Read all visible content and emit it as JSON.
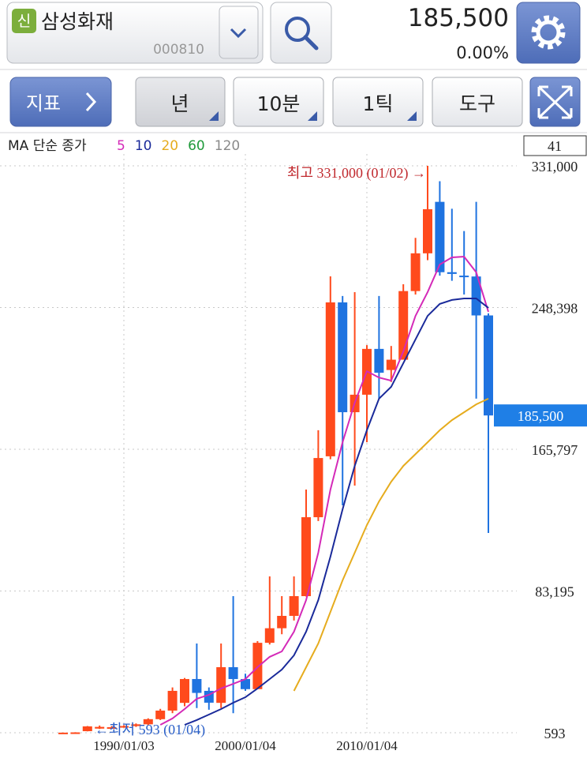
{
  "header": {
    "badge": "신",
    "name": "삼성화재",
    "code": "000810",
    "price": "185,500",
    "change": "0.00%"
  },
  "toolbar": {
    "indicator": "지표",
    "period": "년",
    "interval": "10분",
    "tick": "1틱",
    "tools": "도구"
  },
  "count_box": "41",
  "chart_data": {
    "type": "candlestick",
    "legend_title": "MA 단순 종가",
    "categories": [
      null,
      null,
      null,
      null,
      null,
      "1990/01/03",
      null,
      null,
      null,
      null,
      null,
      null,
      null,
      null,
      null,
      "2000/01/04",
      null,
      null,
      null,
      null,
      null,
      null,
      null,
      null,
      null,
      "2010/01/04",
      null,
      null,
      null,
      null,
      null,
      null,
      null,
      null,
      null,
      null
    ],
    "open": [
      600,
      700,
      1500,
      3000,
      3500,
      3800,
      4500,
      5500,
      8500,
      13500,
      18000,
      31900,
      25000,
      18000,
      38800,
      31900,
      26000,
      53000,
      61500,
      68700,
      80200,
      126200,
      161700,
      251400,
      187400,
      197600,
      224300,
      212000,
      218000,
      258000,
      280000,
      310000,
      269000,
      267000,
      266500,
      243800
    ],
    "high": [
      700,
      900,
      4500,
      4800,
      4500,
      5000,
      6000,
      9000,
      14500,
      27000,
      32500,
      52600,
      27000,
      52600,
      80200,
      35000,
      54000,
      91700,
      80200,
      91700,
      142300,
      176900,
      266600,
      255100,
      257400,
      226500,
      255100,
      226000,
      262000,
      289000,
      331000,
      322000,
      306000,
      293000,
      310000,
      245000
    ],
    "low": [
      593,
      650,
      1400,
      2800,
      3000,
      3500,
      4000,
      5000,
      8000,
      12000,
      16000,
      15000,
      14000,
      15000,
      12000,
      25000,
      26000,
      52000,
      58000,
      66000,
      80000,
      124000,
      160000,
      133100,
      144600,
      169900,
      195300,
      205000,
      218000,
      256000,
      276000,
      267000,
      264000,
      256000,
      195300,
      117000
    ],
    "close": [
      650,
      800,
      4300,
      4000,
      3800,
      4500,
      5500,
      8500,
      13500,
      25000,
      31900,
      23800,
      18100,
      38800,
      31900,
      26000,
      53000,
      61500,
      68700,
      80200,
      126200,
      160700,
      251400,
      187400,
      197600,
      224300,
      210400,
      218000,
      258000,
      280000,
      305700,
      269000,
      268000,
      266500,
      243800,
      185500
    ],
    "up_color": "#ff4a1c",
    "down_color": "#1f73e0",
    "series": [
      {
        "name": "5",
        "color": "#d42ab8",
        "values": [
          null,
          null,
          null,
          null,
          null,
          null,
          null,
          null,
          5200,
          8900,
          14400,
          20400,
          22700,
          26400,
          29100,
          31900,
          38800,
          44800,
          48000,
          59500,
          77900,
          105500,
          142300,
          169900,
          192900,
          211300,
          207600,
          205800,
          222800,
          243500,
          257400,
          273500,
          277600,
          278100,
          268900,
          245900
        ]
      },
      {
        "name": "10",
        "color": "#1a2a9a",
        "values": [
          null,
          null,
          null,
          null,
          null,
          null,
          null,
          null,
          null,
          null,
          5200,
          8000,
          11200,
          14400,
          18100,
          21300,
          26400,
          31900,
          37400,
          45700,
          59500,
          77900,
          103200,
          130800,
          156100,
          176900,
          195300,
          202200,
          216000,
          229800,
          243500,
          250500,
          252800,
          253700,
          253700,
          248200
        ]
      },
      {
        "name": "20",
        "color": "#e6ac1e",
        "values": [
          null,
          null,
          null,
          null,
          null,
          null,
          null,
          null,
          null,
          null,
          null,
          null,
          null,
          null,
          null,
          null,
          null,
          null,
          null,
          25000,
          38800,
          52600,
          71000,
          89400,
          105500,
          121600,
          135400,
          146900,
          156100,
          163000,
          169900,
          176900,
          182800,
          187400,
          192000,
          195300
        ]
      },
      {
        "name": "60",
        "color": "#1f9a3a",
        "values": [
          null,
          null,
          null,
          null,
          null,
          null,
          null,
          null,
          null,
          null,
          null,
          null,
          null,
          null,
          null,
          null,
          null,
          null,
          null,
          null,
          null,
          null,
          null,
          null,
          null,
          null,
          null,
          null,
          null,
          null,
          null,
          null,
          null,
          null,
          null,
          null
        ]
      },
      {
        "name": "120",
        "color": "#8a8a8a",
        "values": [
          null,
          null,
          null,
          null,
          null,
          null,
          null,
          null,
          null,
          null,
          null,
          null,
          null,
          null,
          null,
          null,
          null,
          null,
          null,
          null,
          null,
          null,
          null,
          null,
          null,
          null,
          null,
          null,
          null,
          null,
          null,
          null,
          null,
          null,
          null,
          null
        ]
      }
    ],
    "ylim": [
      593,
      331000
    ],
    "yticks": [
      593,
      {
        "value": 83195,
        "label": "83,195"
      },
      {
        "value": 165797,
        "label": "165,797"
      },
      {
        "value": 248398,
        "label": "248,398"
      },
      {
        "value": 331000,
        "label": "331,000"
      }
    ],
    "last_price": {
      "value": 185500,
      "label": "185,500"
    },
    "high_annotation": "최고 331,000 (01/02) →",
    "low_annotation": "←최저 593 (01/04)",
    "grid": true
  }
}
